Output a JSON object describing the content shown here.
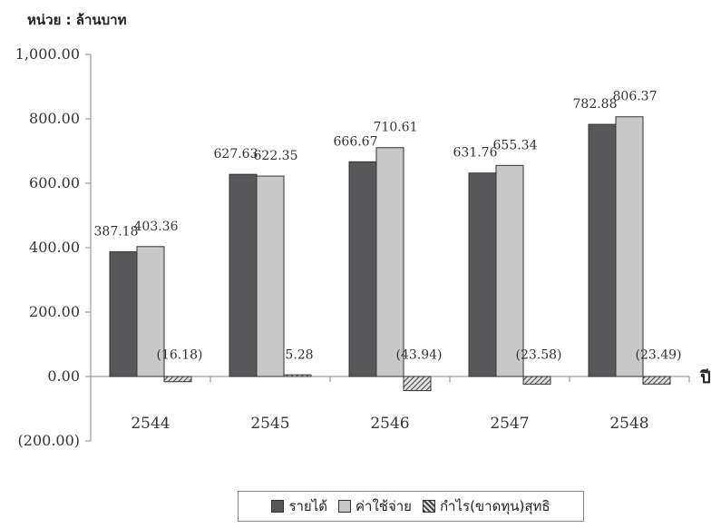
{
  "unit_label": "หน่วย : ล้านบาท",
  "chart_data": {
    "type": "bar",
    "categories": [
      "2544",
      "2545",
      "2546",
      "2547",
      "2548"
    ],
    "series": [
      {
        "name": "รายได้",
        "values": [
          387.18,
          627.63,
          666.67,
          631.76,
          782.88
        ],
        "labels": [
          "387.18",
          "627.63",
          "666.67",
          "631.76",
          "782.88"
        ],
        "color": "#58585a"
      },
      {
        "name": "ค่าใช้จ่าย",
        "values": [
          403.36,
          622.35,
          710.61,
          655.34,
          806.37
        ],
        "labels": [
          "403.36",
          "622.35",
          "710.61",
          "655.34",
          "806.37"
        ],
        "color": "#c8c8c8"
      },
      {
        "name": "กำไร(ขาดทุน)สุทธิ",
        "values": [
          -16.18,
          5.28,
          -43.94,
          -23.58,
          -23.49
        ],
        "labels": [
          "(16.18)",
          "5.28",
          "(43.94)",
          "(23.58)",
          "(23.49)"
        ],
        "pattern": "diagonal-hatch"
      }
    ],
    "y_ticks": [
      1000,
      800,
      600,
      400,
      200,
      0,
      -200
    ],
    "y_tick_labels": [
      "1,000.00",
      "800.00",
      "600.00",
      "400.00",
      "200.00",
      "0.00",
      "(200.00)"
    ],
    "ylim": [
      -200,
      1000
    ],
    "xlabel": "ปี",
    "legend_position": "bottom",
    "grid": false
  }
}
